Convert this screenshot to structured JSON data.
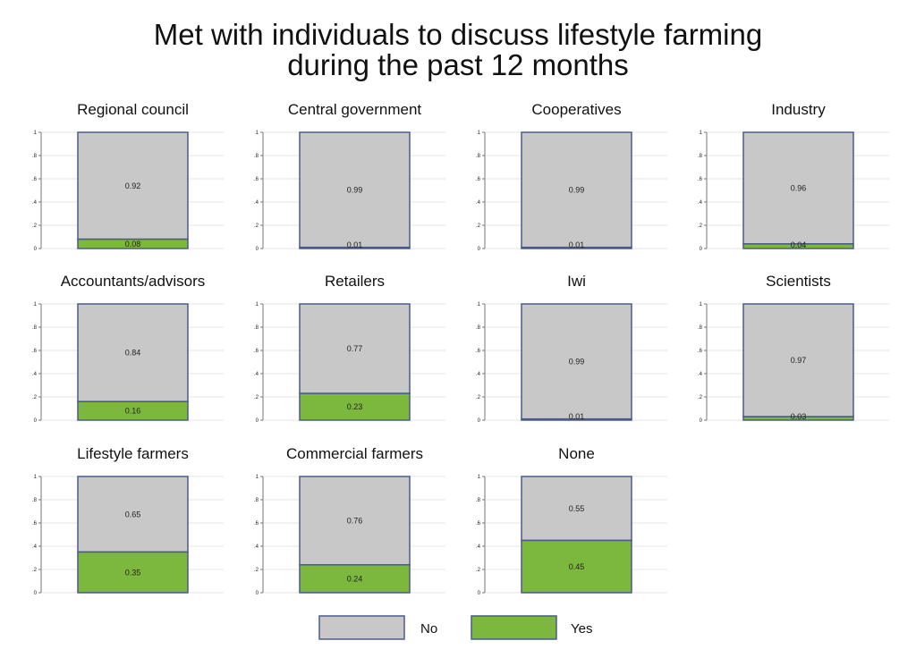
{
  "chart_data": {
    "type": "bar",
    "stacked": true,
    "title": [
      "Met with individuals to discuss lifestyle farming",
      "during the past 12 months"
    ],
    "ylim": [
      0,
      1
    ],
    "yticks": [
      0,
      0.2,
      0.4,
      0.6,
      0.8,
      1
    ],
    "ytick_labels": [
      "0",
      ".2",
      ".4",
      ".6",
      ".8",
      "1"
    ],
    "grid": true,
    "legend_placement": "bottom",
    "series_colors": {
      "No": "#c8c8c8",
      "Yes": "#7cb83e"
    },
    "border_color": "#4a5a8a",
    "panels": [
      {
        "title": "Regional council",
        "yes": 0.08,
        "no": 0.92,
        "yes_label": "0.08",
        "no_label": "0.92"
      },
      {
        "title": "Central government",
        "yes": 0.01,
        "no": 0.99,
        "yes_label": "0.01",
        "no_label": "0.99"
      },
      {
        "title": "Cooperatives",
        "yes": 0.01,
        "no": 0.99,
        "yes_label": "0.01",
        "no_label": "0.99"
      },
      {
        "title": "Industry",
        "yes": 0.04,
        "no": 0.96,
        "yes_label": "0.04",
        "no_label": "0.96"
      },
      {
        "title": "Accountants/advisors",
        "yes": 0.16,
        "no": 0.84,
        "yes_label": "0.16",
        "no_label": "0.84"
      },
      {
        "title": "Retailers",
        "yes": 0.23,
        "no": 0.77,
        "yes_label": "0.23",
        "no_label": "0.77"
      },
      {
        "title": "Iwi",
        "yes": 0.01,
        "no": 0.99,
        "yes_label": "0.01",
        "no_label": "0.99"
      },
      {
        "title": "Scientists",
        "yes": 0.03,
        "no": 0.97,
        "yes_label": "0.03",
        "no_label": "0.97"
      },
      {
        "title": "Lifestyle farmers",
        "yes": 0.35,
        "no": 0.65,
        "yes_label": "0.35",
        "no_label": "0.65"
      },
      {
        "title": "Commercial farmers",
        "yes": 0.24,
        "no": 0.76,
        "yes_label": "0.24",
        "no_label": "0.76"
      },
      {
        "title": "None",
        "yes": 0.45,
        "no": 0.55,
        "yes_label": "0.45",
        "no_label": "0.55"
      }
    ],
    "legend": [
      {
        "name": "No",
        "label": "No"
      },
      {
        "name": "Yes",
        "label": "Yes"
      }
    ]
  }
}
